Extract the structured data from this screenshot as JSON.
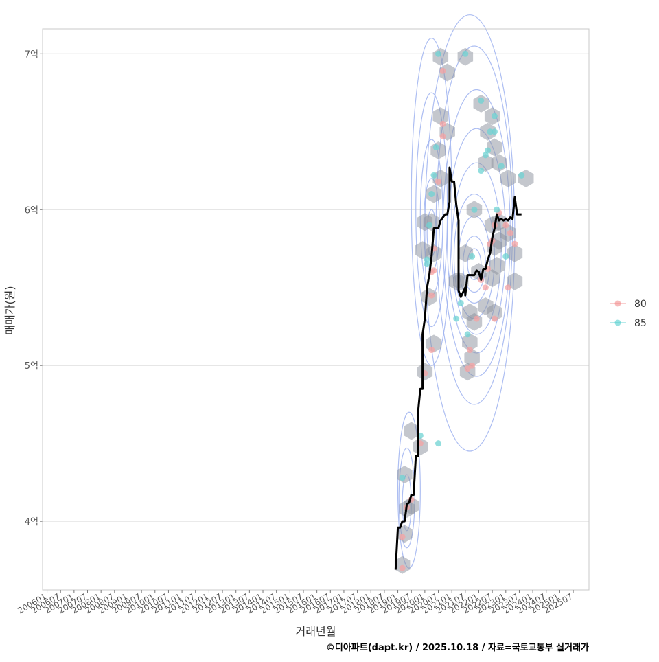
{
  "chart_data": {
    "type": "scatter",
    "title": "",
    "xlabel": "거래년월",
    "ylabel": "매매가(원)",
    "x_tick_labels": [
      "200601",
      "200607",
      "200701",
      "200707",
      "200801",
      "200807",
      "200901",
      "200907",
      "201001",
      "201007",
      "201101",
      "201107",
      "201201",
      "201207",
      "201301",
      "201307",
      "201401",
      "201407",
      "201501",
      "201507",
      "201601",
      "201607",
      "201701",
      "201707",
      "201801",
      "201807",
      "201901",
      "201907",
      "202001",
      "202007",
      "202101",
      "202107",
      "202201",
      "202207",
      "202301",
      "202307",
      "202401",
      "202407",
      "202501",
      "202507"
    ],
    "y_ticks": [
      {
        "value": 4,
        "label": "4억"
      },
      {
        "value": 5,
        "label": "5억"
      },
      {
        "value": 6,
        "label": "6억"
      },
      {
        "value": 7,
        "label": "7억"
      }
    ],
    "x_unit": "months since 2006-01",
    "xlim": [
      -2,
      241
    ],
    "ylim": [
      3.56,
      7.16
    ],
    "grid": true,
    "legend": {
      "position": "right",
      "entries": [
        {
          "name": "80",
          "color": "#f08080"
        },
        {
          "name": "85",
          "color": "#40c8c8"
        }
      ]
    },
    "colors": {
      "series_80": "#f5a3a3",
      "series_85": "#6fd3d3",
      "trend": "#000000",
      "density": "#9fb3f0",
      "hex": "#8a8f9c",
      "grid": "#dddddd"
    },
    "series": [
      {
        "name": "80",
        "points": [
          [
            158,
            3.7
          ],
          [
            158,
            3.9
          ],
          [
            160,
            4.09
          ],
          [
            162,
            4.14
          ],
          [
            166,
            4.5
          ],
          [
            168,
            4.95
          ],
          [
            171,
            5.1
          ],
          [
            171,
            5.45
          ],
          [
            171,
            5.6
          ],
          [
            172,
            5.61
          ],
          [
            172,
            5.75
          ],
          [
            174,
            6.18
          ],
          [
            176,
            6.47
          ],
          [
            176,
            6.55
          ],
          [
            176,
            6.89
          ],
          [
            187,
            4.98
          ],
          [
            189,
            5.0
          ],
          [
            188,
            5.1
          ],
          [
            191,
            5.3
          ],
          [
            195,
            5.5
          ],
          [
            196,
            5.62
          ],
          [
            197,
            5.78
          ],
          [
            198,
            5.8
          ],
          [
            199,
            5.3
          ],
          [
            199,
            5.9
          ],
          [
            201,
            5.98
          ],
          [
            204,
            5.9
          ],
          [
            206,
            5.85
          ],
          [
            205,
            5.5
          ],
          [
            208,
            5.78
          ],
          [
            193,
            5.55
          ]
        ]
      },
      {
        "name": "85",
        "points": [
          [
            158,
            4.28
          ],
          [
            166,
            4.55
          ],
          [
            169,
            5.65
          ],
          [
            170,
            5.9
          ],
          [
            171,
            6.1
          ],
          [
            172,
            6.22
          ],
          [
            173,
            6.4
          ],
          [
            174,
            4.5
          ],
          [
            174,
            7.0
          ],
          [
            182,
            5.3
          ],
          [
            184,
            5.4
          ],
          [
            186,
            7.0
          ],
          [
            189,
            5.7
          ],
          [
            190,
            6.0
          ],
          [
            193,
            6.25
          ],
          [
            193,
            6.7
          ],
          [
            195,
            6.35
          ],
          [
            196,
            6.38
          ],
          [
            197,
            6.5
          ],
          [
            199,
            6.5
          ],
          [
            199,
            6.6
          ],
          [
            200,
            6.0
          ],
          [
            202,
            6.28
          ],
          [
            204,
            5.7
          ],
          [
            211,
            6.22
          ],
          [
            169,
            5.68
          ],
          [
            187,
            5.2
          ]
        ]
      }
    ],
    "trend_line": [
      [
        155,
        3.69
      ],
      [
        156,
        3.96
      ],
      [
        157,
        3.96
      ],
      [
        158,
        4.0
      ],
      [
        159,
        4.0
      ],
      [
        160,
        4.11
      ],
      [
        161,
        4.12
      ],
      [
        162,
        4.17
      ],
      [
        163,
        4.17
      ],
      [
        164,
        4.42
      ],
      [
        165,
        4.42
      ],
      [
        165,
        4.7
      ],
      [
        166,
        4.85
      ],
      [
        167,
        4.85
      ],
      [
        167,
        5.2
      ],
      [
        168,
        5.3
      ],
      [
        169,
        5.5
      ],
      [
        170,
        5.58
      ],
      [
        171,
        5.7
      ],
      [
        172,
        5.88
      ],
      [
        173,
        5.88
      ],
      [
        174,
        5.88
      ],
      [
        175,
        5.93
      ],
      [
        176,
        5.95
      ],
      [
        177,
        5.97
      ],
      [
        178,
        5.97
      ],
      [
        179,
        6.05
      ],
      [
        179,
        6.27
      ],
      [
        180,
        6.18
      ],
      [
        181,
        6.18
      ],
      [
        182,
        6.03
      ],
      [
        183,
        5.93
      ],
      [
        183,
        5.48
      ],
      [
        184,
        5.44
      ],
      [
        185,
        5.47
      ],
      [
        186,
        5.5
      ],
      [
        186,
        5.45
      ],
      [
        187,
        5.58
      ],
      [
        188,
        5.58
      ],
      [
        189,
        5.58
      ],
      [
        190,
        5.58
      ],
      [
        191,
        5.61
      ],
      [
        192,
        5.6
      ],
      [
        193,
        5.55
      ],
      [
        194,
        5.62
      ],
      [
        195,
        5.62
      ],
      [
        196,
        5.68
      ],
      [
        197,
        5.72
      ],
      [
        198,
        5.82
      ],
      [
        199,
        5.88
      ],
      [
        200,
        5.97
      ],
      [
        201,
        5.93
      ],
      [
        202,
        5.94
      ],
      [
        203,
        5.93
      ],
      [
        204,
        5.94
      ],
      [
        205,
        5.93
      ],
      [
        206,
        5.95
      ],
      [
        207,
        5.94
      ],
      [
        208,
        6.08
      ],
      [
        209,
        5.97
      ],
      [
        210,
        5.97
      ],
      [
        211,
        5.97
      ]
    ],
    "hex_bins": [
      [
        158,
        3.72
      ],
      [
        159,
        3.92
      ],
      [
        160,
        4.08
      ],
      [
        162,
        4.1
      ],
      [
        159,
        4.3
      ],
      [
        162,
        4.58
      ],
      [
        166,
        4.48
      ],
      [
        168,
        4.96
      ],
      [
        172,
        5.14
      ],
      [
        170,
        5.44
      ],
      [
        167,
        5.74
      ],
      [
        172,
        5.72
      ],
      [
        168,
        5.92
      ],
      [
        171,
        5.92
      ],
      [
        172,
        6.1
      ],
      [
        175,
        6.2
      ],
      [
        174,
        6.38
      ],
      [
        175,
        6.6
      ],
      [
        178,
        6.5
      ],
      [
        175,
        6.98
      ],
      [
        178,
        6.88
      ],
      [
        186,
        6.98
      ],
      [
        182,
        5.54
      ],
      [
        184,
        5.54
      ],
      [
        186,
        5.72
      ],
      [
        188,
        5.34
      ],
      [
        190,
        5.28
      ],
      [
        188,
        5.15
      ],
      [
        189,
        5.05
      ],
      [
        187,
        4.96
      ],
      [
        190,
        6.0
      ],
      [
        193,
        6.68
      ],
      [
        196,
        6.5
      ],
      [
        199,
        6.4
      ],
      [
        198,
        6.6
      ],
      [
        195,
        6.3
      ],
      [
        201,
        6.3
      ],
      [
        205,
        6.2
      ],
      [
        192,
        5.6
      ],
      [
        195,
        5.38
      ],
      [
        199,
        5.34
      ],
      [
        198,
        5.56
      ],
      [
        200,
        5.64
      ],
      [
        199,
        5.76
      ],
      [
        201,
        5.8
      ],
      [
        198,
        5.9
      ],
      [
        201,
        5.92
      ],
      [
        205,
        5.85
      ],
      [
        208,
        5.72
      ],
      [
        208,
        5.54
      ],
      [
        213,
        6.2
      ]
    ],
    "density_contours": [
      {
        "cx": 190,
        "cy": 5.65,
        "rx": 3,
        "ry": 0.1
      },
      {
        "cx": 190,
        "cy": 5.65,
        "rx": 5,
        "ry": 0.18
      },
      {
        "cx": 190,
        "cy": 5.68,
        "rx": 7,
        "ry": 0.28
      },
      {
        "cx": 190,
        "cy": 5.7,
        "rx": 9,
        "ry": 0.4
      },
      {
        "cx": 191,
        "cy": 5.75,
        "rx": 11,
        "ry": 0.55
      },
      {
        "cx": 191,
        "cy": 5.8,
        "rx": 13,
        "ry": 0.72
      },
      {
        "cx": 191,
        "cy": 5.85,
        "rx": 15,
        "ry": 0.92
      },
      {
        "cx": 190,
        "cy": 5.9,
        "rx": 17,
        "ry": 1.15
      },
      {
        "cx": 188,
        "cy": 5.85,
        "rx": 20,
        "ry": 1.4
      },
      {
        "cx": 171,
        "cy": 5.85,
        "rx": 2,
        "ry": 0.15
      },
      {
        "cx": 171,
        "cy": 5.9,
        "rx": 3.5,
        "ry": 0.3
      },
      {
        "cx": 171,
        "cy": 5.95,
        "rx": 5,
        "ry": 0.5
      },
      {
        "cx": 171,
        "cy": 6.0,
        "rx": 7,
        "ry": 0.75
      },
      {
        "cx": 171,
        "cy": 6.05,
        "rx": 9,
        "ry": 1.05
      },
      {
        "cx": 160,
        "cy": 4.12,
        "rx": 2,
        "ry": 0.18
      },
      {
        "cx": 160,
        "cy": 4.15,
        "rx": 3.5,
        "ry": 0.32
      },
      {
        "cx": 161,
        "cy": 4.2,
        "rx": 5,
        "ry": 0.5
      }
    ]
  },
  "caption": "©디아파트(dapt.kr) / 2025.10.18 / 자료=국토교통부 실거래가"
}
